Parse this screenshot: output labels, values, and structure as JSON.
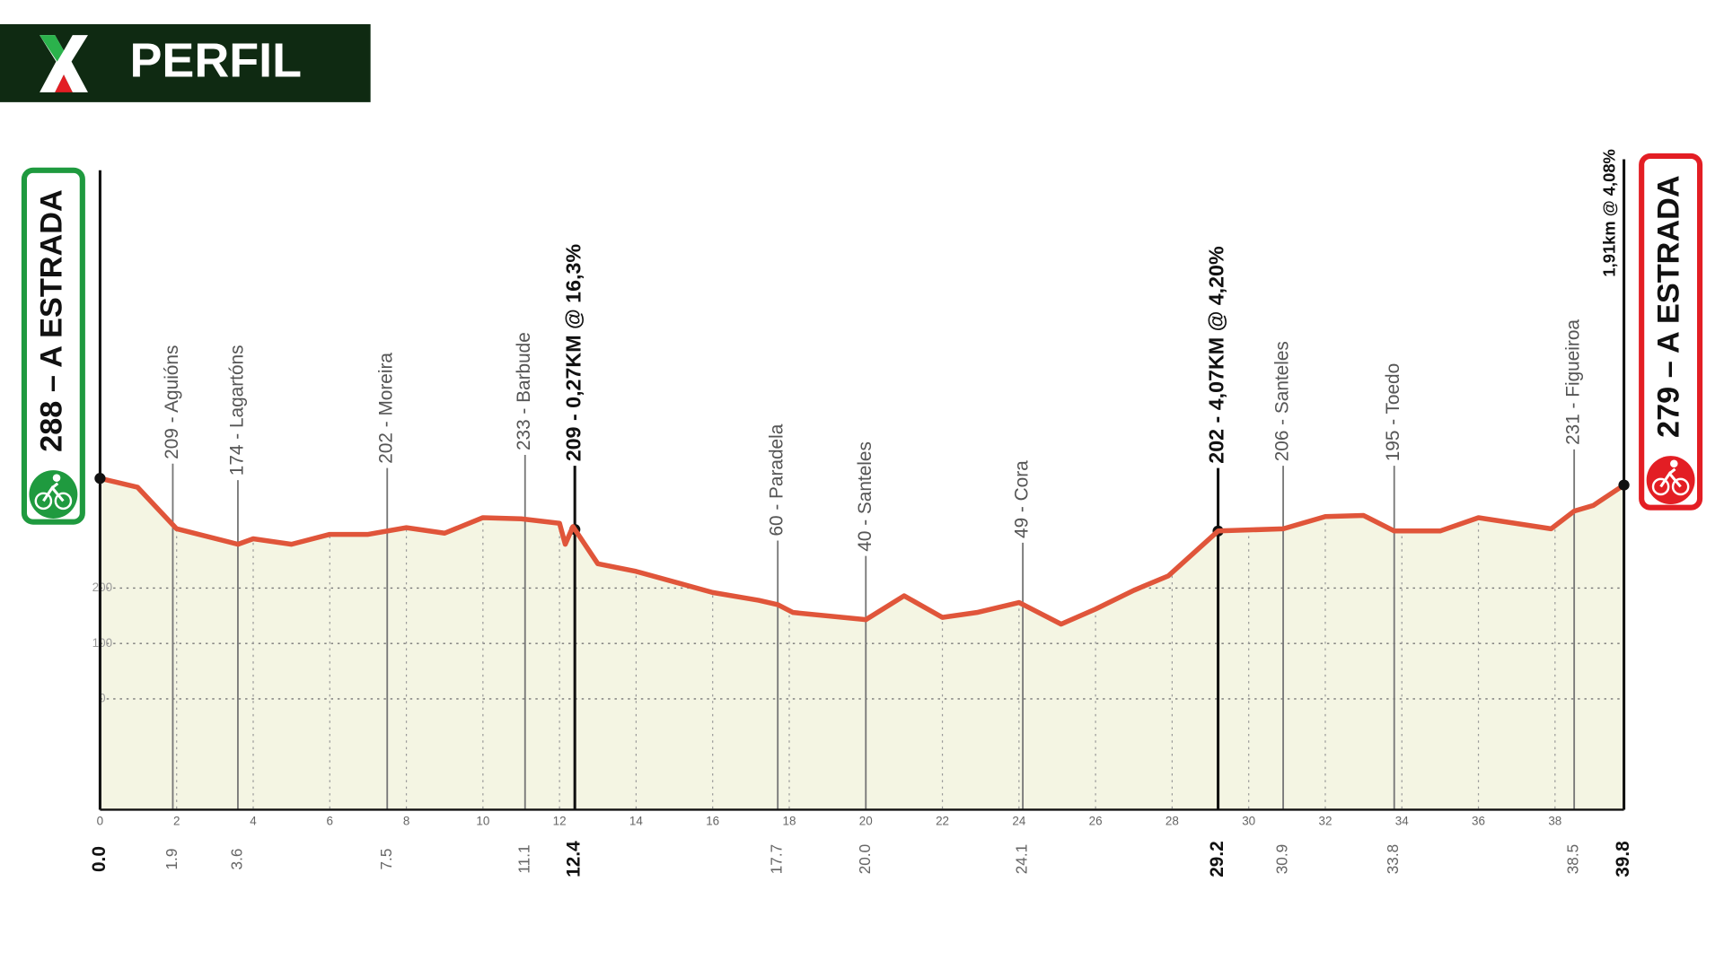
{
  "chart_data": {
    "type": "area",
    "title": "PERFIL",
    "x": [
      0,
      0.98,
      2,
      3.6,
      4,
      5,
      6,
      7,
      8,
      9,
      10,
      11,
      12,
      12.15,
      12.35,
      13,
      14,
      16,
      17.2,
      17.7,
      18.1,
      20,
      21,
      22,
      22.9,
      24,
      25.1,
      26,
      27,
      27.9,
      29.2,
      30.9,
      32,
      33,
      33.8,
      35,
      36,
      37.9,
      38.5,
      39,
      39.8
    ],
    "values": [
      398,
      382,
      307,
      279,
      289,
      279,
      297,
      297,
      309,
      299,
      327,
      325,
      317,
      279,
      311,
      244,
      230,
      192,
      178,
      170,
      156,
      143,
      186,
      147,
      156,
      174,
      135,
      162,
      196,
      222,
      303,
      307,
      329,
      331,
      303,
      303,
      327,
      307,
      339,
      349,
      386
    ],
    "color": "#e0553a",
    "fill": "#f4f5e3",
    "xlim": [
      0,
      39.8
    ],
    "xticks": [
      0,
      2,
      4,
      6,
      8,
      10,
      12,
      14,
      16,
      18,
      20,
      22,
      24,
      26,
      28,
      30,
      32,
      34,
      36,
      38
    ],
    "ylim": [
      -200,
      960
    ],
    "yticks": [
      0,
      100,
      200
    ],
    "grid": true,
    "start": {
      "km": {
        "value": 0,
        "label": "0.0"
      },
      "label": "288 – A ESTRADA",
      "color": "#1f9a3f"
    },
    "finish": {
      "km": 39.8,
      "label": "279 – A ESTRADA",
      "climb_label": "1,91km @ 4,08%",
      "color": "#e31e24"
    },
    "markers": [
      {
        "km": 1.9,
        "label": "209 - Aguións",
        "bold": false
      },
      {
        "km": 3.6,
        "label": "174 - Lagartóns",
        "bold": false
      },
      {
        "km": 7.5,
        "label": "202 - Moreira",
        "bold": false
      },
      {
        "km": 11.1,
        "label": "233 - Barbude",
        "bold": false
      },
      {
        "km": 12.4,
        "label": "209 - 0,27KM @ 16,3%",
        "bold": true
      },
      {
        "km": 17.7,
        "label": "60 - Paradela",
        "bold": false
      },
      {
        "km": {
          "value": 20,
          "label": "20.0"
        },
        "label": "40 - Santeles",
        "bold": false
      },
      {
        "km": 24.1,
        "label": "49 - Cora",
        "bold": false
      },
      {
        "km": 29.2,
        "label": "202 - 4,07KM @ 4,20%",
        "bold": true
      },
      {
        "km": 30.9,
        "label": "206 - Santeles",
        "bold": false
      },
      {
        "km": 33.8,
        "label": "195 - Toedo",
        "bold": false
      },
      {
        "km": 38.5,
        "label": "231 - Figueiroa",
        "bold": false
      }
    ]
  }
}
